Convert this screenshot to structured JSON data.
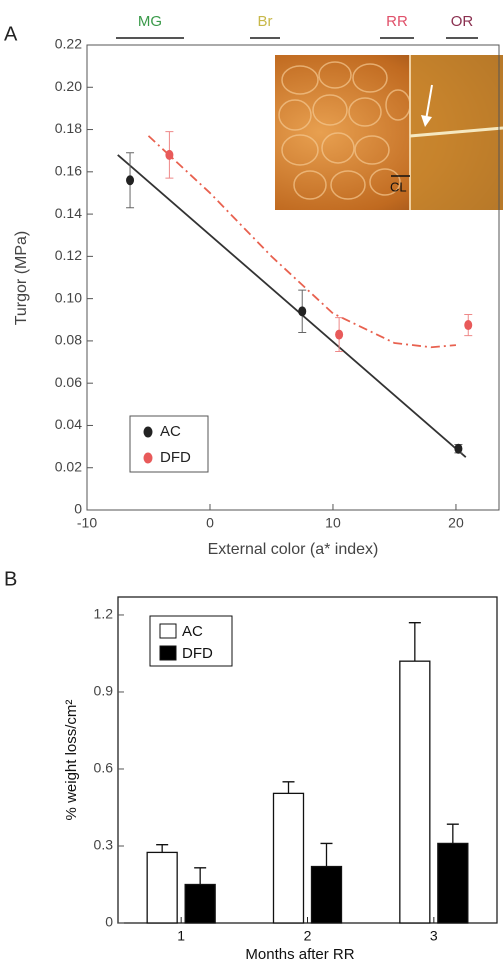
{
  "chart_data": [
    {
      "type": "scatter",
      "panel": "A",
      "x_label": "External color (a* index)",
      "y_label": "Turgor (MPa)",
      "xlim": [
        -10,
        23.5
      ],
      "xticks": [
        -10,
        0,
        10,
        20
      ],
      "ylim": [
        0,
        0.22
      ],
      "yticks": [
        0,
        0.02,
        0.04,
        0.06,
        0.08,
        {
          "value": 0.1,
          "label": "0.10"
        },
        0.12,
        0.14,
        0.16,
        0.18,
        {
          "value": 0.2,
          "label": "0.20"
        },
        0.22
      ],
      "stages": [
        {
          "label": "MG",
          "color": "#3a9a4a"
        },
        {
          "label": "Br",
          "color": "#c8b84a"
        },
        {
          "label": "RR",
          "color": "#e0506a"
        },
        {
          "label": "OR",
          "color": "#8a3050"
        }
      ],
      "inset_label": "CL",
      "series": [
        {
          "name": "AC",
          "color": "#222222",
          "x": [
            -6.5,
            7.5,
            20.2
          ],
          "values": [
            0.156,
            0.094,
            0.029
          ],
          "errors": [
            0.013,
            0.01,
            0.002
          ]
        },
        {
          "name": "DFD",
          "color": "#e85a5a",
          "x": [
            -3.3,
            10.5,
            21
          ],
          "values": [
            0.168,
            0.083,
            0.0875
          ],
          "errors": [
            0.011,
            0.008,
            0.005
          ]
        }
      ],
      "fits": [
        {
          "color": "#333333",
          "x": [
            -7.5,
            20.8
          ],
          "values": [
            0.168,
            0.025
          ]
        },
        {
          "color": "#e8614f",
          "x": [
            -5,
            0,
            5,
            10,
            15,
            18,
            20
          ],
          "values": [
            0.177,
            0.15,
            0.12,
            0.093,
            0.079,
            0.077,
            0.078
          ]
        }
      ],
      "legend": "lower left"
    },
    {
      "type": "bar",
      "panel": "B",
      "x_label": "Months after RR",
      "y_label": "% weight loss/cm²",
      "categories": [
        "1",
        "2",
        "3"
      ],
      "ylim": [
        0,
        1.27
      ],
      "yticks": [
        0,
        0.3,
        0.6,
        0.9,
        1.2
      ],
      "series": [
        {
          "name": "AC",
          "color": "#ffffff",
          "values": [
            0.275,
            0.505,
            1.02
          ],
          "errors": [
            0.03,
            0.045,
            0.15
          ]
        },
        {
          "name": "DFD",
          "color": "#000000",
          "values": [
            0.15,
            0.22,
            0.31
          ],
          "errors": [
            0.065,
            0.09,
            0.075
          ]
        }
      ],
      "legend": "upper left"
    }
  ]
}
